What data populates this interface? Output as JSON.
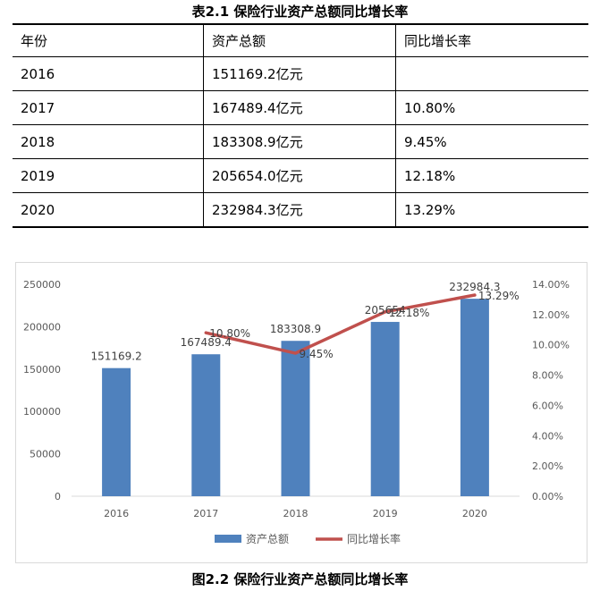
{
  "table": {
    "caption": "表2.1 保险行业资产总额同比增长率",
    "headers": [
      "年份",
      "资产总额",
      "同比增长率"
    ],
    "rows": [
      [
        "2016",
        "151169.2亿元",
        ""
      ],
      [
        "2017",
        "167489.4亿元",
        "10.80%"
      ],
      [
        "2018",
        "183308.9亿元",
        "9.45%"
      ],
      [
        "2019",
        "205654.0亿元",
        "12.18%"
      ],
      [
        "2020",
        "232984.3亿元",
        "13.29%"
      ]
    ]
  },
  "chart_data": {
    "type": "bar",
    "categories": [
      "2016",
      "2017",
      "2018",
      "2019",
      "2020"
    ],
    "series": [
      {
        "name": "资产总额",
        "type": "bar",
        "axis": "left",
        "values": [
          151169.2,
          167489.4,
          183308.9,
          205654.0,
          232984.3
        ],
        "labels": [
          "151169.2",
          "167489.4",
          "183308.9",
          "205654",
          "232984.3"
        ],
        "color": "#4f81bd"
      },
      {
        "name": "同比增长率",
        "type": "line",
        "axis": "right",
        "values": [
          null,
          10.8,
          9.45,
          12.18,
          13.29
        ],
        "labels": [
          "",
          "10.80%",
          "9.45%",
          "12.18%",
          "13.29%"
        ],
        "color": "#c0504d"
      }
    ],
    "y_left": {
      "min": 0,
      "max": 250000,
      "ticks": [
        0,
        50000,
        100000,
        150000,
        200000,
        250000
      ],
      "tick_labels": [
        "0",
        "50000",
        "100000",
        "150000",
        "200000",
        "250000"
      ]
    },
    "y_right": {
      "min": 0,
      "max": 14,
      "ticks": [
        0,
        2,
        4,
        6,
        8,
        10,
        12,
        14
      ],
      "tick_labels": [
        "0.00%",
        "2.00%",
        "4.00%",
        "6.00%",
        "8.00%",
        "10.00%",
        "12.00%",
        "14.00%"
      ]
    },
    "grid": false,
    "legend_position": "bottom"
  },
  "figure": {
    "caption": "图2.2 保险行业资产总额同比增长率"
  }
}
